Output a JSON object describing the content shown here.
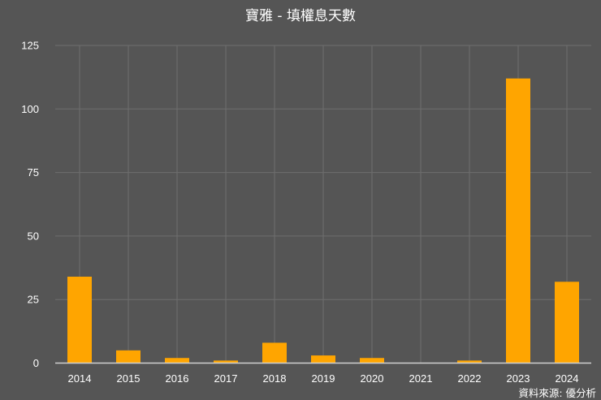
{
  "chart_data": {
    "type": "bar",
    "title": "寶雅 - 填權息天數",
    "source": "資料來源: 優分析",
    "categories": [
      "2014",
      "2015",
      "2016",
      "2017",
      "2018",
      "2019",
      "2020",
      "2021",
      "2022",
      "2023",
      "2024"
    ],
    "values": [
      34,
      5,
      2,
      1,
      8,
      3,
      2,
      0,
      1,
      112,
      32
    ],
    "ylim": [
      0,
      125
    ],
    "yticks": [
      0,
      25,
      50,
      75,
      100,
      125
    ],
    "grid": true,
    "colors": {
      "bar": "#FFA500",
      "background": "#555555",
      "grid": "#6e6e6e",
      "text": "#ffffff"
    }
  }
}
